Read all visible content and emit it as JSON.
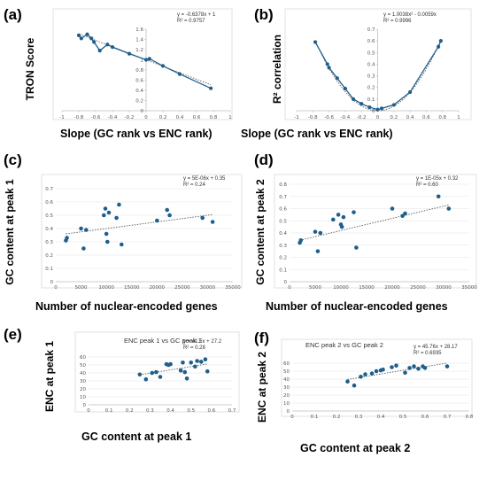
{
  "colors": {
    "marker": "#1f5f8b",
    "trendline": "#5a5a5a",
    "axis": "#bfbfbf",
    "grid": "#e3e3e3",
    "box": "#d9d9d9"
  },
  "chart_data": [
    {
      "id": "a",
      "panel_label": "(a)",
      "type": "line",
      "xlabel": "Slope (GC rank vs ENC rank)",
      "ylabel": "TRON Score",
      "equation": "y = -0.6378x + 1",
      "r2": "R² = 0.9757",
      "xlim": [
        -1,
        1
      ],
      "ylim": [
        0,
        1.6
      ],
      "xticks": [
        "-1",
        "-0.8",
        "-0.6",
        "-0.4",
        "-0.2",
        "0",
        "0.2",
        "0.4",
        "0.6",
        "0.8",
        "1"
      ],
      "yticks": [
        "0",
        "0.2",
        "0.4",
        "0.6",
        "0.8",
        "1",
        "1.2",
        "1.4",
        "1.6"
      ],
      "y_axis_at_x": 0,
      "x_axis_at_y": 0,
      "grid": false,
      "series": [
        {
          "x": [
            -0.8,
            -0.77,
            -0.7,
            -0.65,
            -0.62,
            -0.55,
            -0.46,
            -0.4,
            -0.2,
            0,
            0.04,
            0.2,
            0.4,
            0.77
          ],
          "y": [
            1.48,
            1.42,
            1.5,
            1.42,
            1.35,
            1.18,
            1.3,
            1.25,
            1.12,
            1.0,
            1.02,
            0.88,
            0.72,
            0.44
          ]
        }
      ],
      "trendline": {
        "slope": -0.6378,
        "intercept": 1
      }
    },
    {
      "id": "b",
      "panel_label": "(b)",
      "type": "line",
      "xlabel": "Slope (GC rank vs ENC rank)",
      "ylabel": "R² correlation",
      "equation": "y = 1.0038x² - 0.0059x",
      "r2": "R² = 0.9996",
      "xlim": [
        -1,
        1
      ],
      "ylim": [
        0,
        0.7
      ],
      "xticks": [
        "-1",
        "-0.8",
        "-0.6",
        "-0.4",
        "-0.2",
        "0",
        "0.2",
        "0.4",
        "0.6",
        "0.8",
        "1"
      ],
      "yticks": [
        "0",
        "0.1",
        "0.2",
        "0.3",
        "0.4",
        "0.5",
        "0.6",
        "0.7"
      ],
      "y_axis_at_x": 0,
      "x_axis_at_y": 0,
      "grid": false,
      "series": [
        {
          "x": [
            -0.77,
            -0.62,
            -0.6,
            -0.5,
            -0.4,
            -0.3,
            -0.2,
            -0.1,
            0,
            0.05,
            0.2,
            0.4,
            0.75,
            0.78
          ],
          "y": [
            0.59,
            0.4,
            0.37,
            0.28,
            0.19,
            0.1,
            0.06,
            0.03,
            0.01,
            0.02,
            0.05,
            0.16,
            0.55,
            0.6
          ]
        }
      ],
      "trendline": {
        "quadratic": [
          1.0038,
          -0.0059,
          0
        ]
      }
    },
    {
      "id": "c",
      "panel_label": "(c)",
      "type": "scatter",
      "xlabel": "Number of nuclear-encoded genes",
      "ylabel": "GC content at peak 1",
      "equation": "y = 5E-06x + 0.35",
      "r2": "R² = 0.24",
      "xlim": [
        0,
        35000
      ],
      "ylim": [
        0,
        0.7
      ],
      "xticks": [
        "0",
        "5000",
        "10000",
        "15000",
        "20000",
        "25000",
        "30000",
        "35000"
      ],
      "yticks": [
        "0",
        "0.1",
        "0.2",
        "0.3",
        "0.4",
        "0.5",
        "0.6",
        "0.7"
      ],
      "grid": true,
      "series": [
        {
          "x": [
            2000,
            2200,
            5000,
            5500,
            6000,
            9500,
            9800,
            10000,
            10200,
            10500,
            12000,
            12500,
            13000,
            20000,
            22000,
            22500,
            29000,
            31000
          ],
          "y": [
            0.31,
            0.33,
            0.4,
            0.25,
            0.39,
            0.5,
            0.55,
            0.36,
            0.3,
            0.52,
            0.48,
            0.58,
            0.28,
            0.46,
            0.54,
            0.5,
            0.48,
            0.45
          ]
        }
      ],
      "trendline": {
        "slope": 5e-06,
        "intercept": 0.35
      }
    },
    {
      "id": "d",
      "panel_label": "(d)",
      "type": "scatter",
      "xlabel": "Number of nuclear-encoded genes",
      "ylabel": "GC content at peak 2",
      "equation": "y = 1E-05x + 0.32",
      "r2": "R² = 0.60",
      "xlim": [
        0,
        35000
      ],
      "ylim": [
        0,
        0.8
      ],
      "xticks": [
        "0",
        "5000",
        "10000",
        "15000",
        "20000",
        "25000",
        "30000",
        "35000"
      ],
      "yticks": [
        "0",
        "0.1",
        "0.2",
        "0.3",
        "0.4",
        "0.5",
        "0.6",
        "0.7",
        "0.8"
      ],
      "grid": true,
      "series": [
        {
          "x": [
            2000,
            2200,
            5000,
            5500,
            6000,
            8500,
            9500,
            10000,
            10200,
            10500,
            12500,
            13000,
            20000,
            22000,
            22500,
            29000,
            31000
          ],
          "y": [
            0.32,
            0.34,
            0.41,
            0.25,
            0.4,
            0.51,
            0.55,
            0.47,
            0.45,
            0.53,
            0.57,
            0.28,
            0.6,
            0.54,
            0.56,
            0.7,
            0.6
          ]
        }
      ],
      "trendline": {
        "slope": 1e-05,
        "intercept": 0.32
      }
    },
    {
      "id": "e",
      "panel_label": "(e)",
      "type": "scatter",
      "title": "ENC peak 1 vs GC peak 1",
      "xlabel": "GC content at peak 1",
      "ylabel": "ENC at peak 1",
      "equation": "y = 41.5x + 27.2",
      "r2": "R² = 0.28",
      "xlim": [
        0,
        0.7
      ],
      "ylim": [
        0,
        60
      ],
      "xticks": [
        "0",
        "0.1",
        "0.2",
        "0.3",
        "0.4",
        "0.5",
        "0.6",
        "0.7"
      ],
      "yticks": [
        "0",
        "10",
        "20",
        "30",
        "40",
        "50",
        "60"
      ],
      "grid": true,
      "series": [
        {
          "x": [
            0.25,
            0.28,
            0.31,
            0.33,
            0.35,
            0.38,
            0.39,
            0.4,
            0.45,
            0.46,
            0.47,
            0.48,
            0.5,
            0.52,
            0.53,
            0.55,
            0.57,
            0.58
          ],
          "y": [
            38,
            32,
            40,
            41,
            35,
            51,
            50,
            51,
            43,
            53,
            41,
            33,
            53,
            48,
            55,
            54,
            57,
            42
          ]
        }
      ],
      "trendline": {
        "slope": 41.5,
        "intercept": 27.2
      }
    },
    {
      "id": "f",
      "panel_label": "(f)",
      "type": "scatter",
      "title": "ENC peak 2 vs GC peak 2",
      "xlabel": "GC content at peak 2",
      "ylabel": "ENC at peak 2",
      "equation": "y = 45.76x + 28.17",
      "r2": "R² = 0.6935",
      "xlim": [
        0,
        0.8
      ],
      "ylim": [
        0,
        60
      ],
      "xticks": [
        "0",
        "0.1",
        "0.2",
        "0.3",
        "0.4",
        "0.5",
        "0.6",
        "0.7",
        "0.8"
      ],
      "yticks": [
        "0",
        "10",
        "20",
        "30",
        "40",
        "50",
        "60"
      ],
      "grid": true,
      "series": [
        {
          "x": [
            0.25,
            0.28,
            0.31,
            0.33,
            0.36,
            0.38,
            0.4,
            0.41,
            0.45,
            0.47,
            0.51,
            0.53,
            0.55,
            0.57,
            0.59,
            0.6,
            0.7
          ],
          "y": [
            37,
            32,
            43,
            46,
            47,
            50,
            51,
            52,
            55,
            57,
            48,
            54,
            56,
            53,
            56,
            54,
            56
          ]
        }
      ],
      "trendline": {
        "slope": 45.76,
        "intercept": 28.17
      }
    }
  ]
}
